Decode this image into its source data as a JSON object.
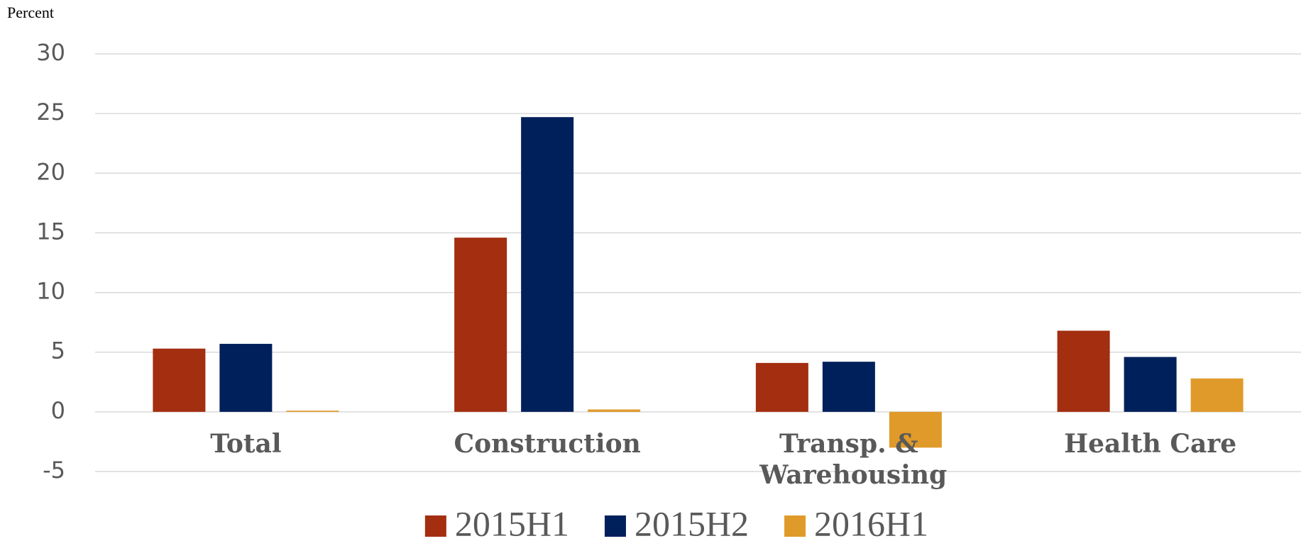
{
  "chart_data": {
    "type": "bar",
    "y_label": "Percent",
    "categories": [
      "Total",
      "Construction",
      "Transp. & Warehousing",
      "Health Care"
    ],
    "series": [
      {
        "name": "2015H1",
        "color": "#a32e10",
        "values": [
          5.3,
          14.6,
          4.1,
          6.8
        ]
      },
      {
        "name": "2015H2",
        "color": "#00205b",
        "values": [
          5.7,
          24.7,
          4.2,
          4.6
        ]
      },
      {
        "name": "2016H1",
        "color": "#e09a2a",
        "values": [
          0.1,
          0.2,
          -3.0,
          2.8
        ]
      }
    ],
    "ylim": [
      -5,
      30
    ],
    "yticks": [
      -5,
      0,
      5,
      10,
      15,
      20,
      25,
      30
    ],
    "grid": true,
    "legend": "bottom"
  }
}
